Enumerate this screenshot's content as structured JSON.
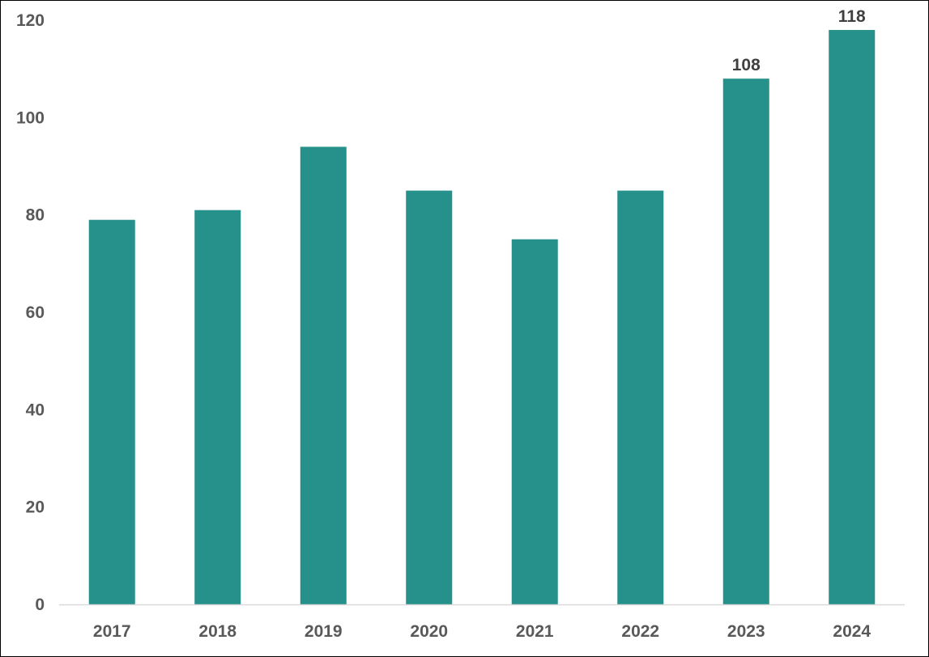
{
  "chart_data": {
    "type": "bar",
    "categories": [
      "2017",
      "2018",
      "2019",
      "2020",
      "2021",
      "2022",
      "2023",
      "2024"
    ],
    "values": [
      79,
      81,
      94,
      85,
      75,
      85,
      108,
      118
    ],
    "data_labels": [
      "",
      "",
      "",
      "",
      "",
      "",
      "108",
      "118"
    ],
    "y_ticks": [
      "0",
      "20",
      "40",
      "60",
      "80",
      "100",
      "120"
    ],
    "title": "",
    "xlabel": "",
    "ylabel": "",
    "ylim": [
      0,
      120
    ],
    "grid": false,
    "bar_color": "#25918A",
    "axis_color": "#D9D9D9"
  }
}
